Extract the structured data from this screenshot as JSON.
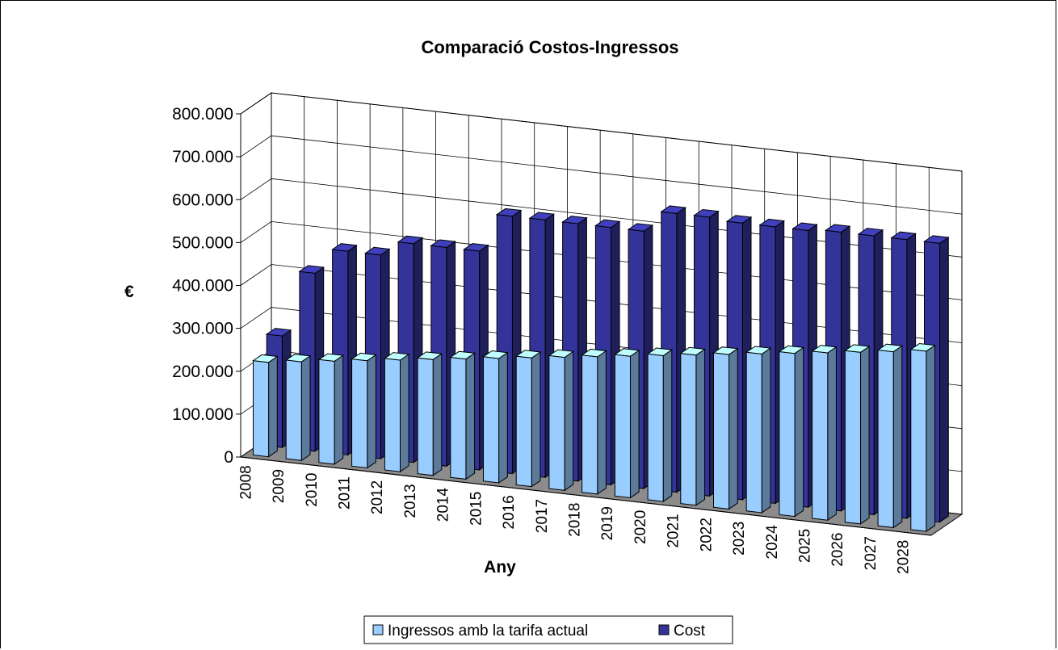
{
  "chart_data": {
    "type": "bar",
    "title": "Comparació Costos-Ingressos",
    "xlabel": "Any",
    "ylabel": "€",
    "ylim": [
      0,
      800000
    ],
    "y_ticks": [
      "0",
      "100.000",
      "200.000",
      "300.000",
      "400.000",
      "500.000",
      "600.000",
      "700.000",
      "800.000"
    ],
    "categories": [
      "2008",
      "2009",
      "2010",
      "2011",
      "2012",
      "2013",
      "2014",
      "2015",
      "2016",
      "2017",
      "2018",
      "2019",
      "2020",
      "2021",
      "2022",
      "2023",
      "2024",
      "2025",
      "2026",
      "2027",
      "2028"
    ],
    "series": [
      {
        "name": "Ingressos amb la tarifa actual",
        "color": "#99ccff",
        "values": [
          220000,
          230000,
          240000,
          250000,
          260000,
          270000,
          280000,
          290000,
          300000,
          310000,
          320000,
          330000,
          340000,
          350000,
          360000,
          370000,
          380000,
          390000,
          400000,
          410000,
          420000
        ]
      },
      {
        "name": "Cost",
        "color": "#333399",
        "values": [
          260000,
          415000,
          475000,
          475000,
          510000,
          510000,
          510000,
          600000,
          600000,
          600000,
          600000,
          600000,
          650000,
          650000,
          645000,
          645000,
          645000,
          650000,
          650000,
          650000,
          650000
        ]
      }
    ],
    "grid": true,
    "legend_position": "bottom",
    "three_d": true
  }
}
